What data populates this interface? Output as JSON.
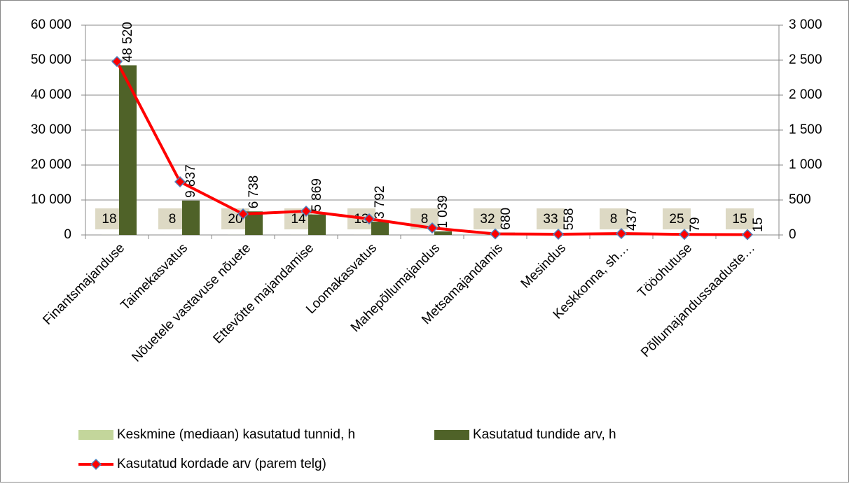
{
  "chart_data": {
    "type": "bar-line",
    "categories": [
      "Finantsmajanduse",
      "Taimekasvatus",
      "Nõuetele vastavuse nõuete",
      "Ettevõtte majandamise",
      "Loomakasvatus",
      "Mahepõllumajandus",
      "Metsamajandamis",
      "Mesindus",
      "Keskkonna, sh…",
      "Tööohutuse",
      "Põllumajandussaaduste…"
    ],
    "series": [
      {
        "name": "Keskmine (mediaan) kasutatud tunnid, h",
        "color": "#c3d69b",
        "type": "bar",
        "axis": "y",
        "values": [
          18,
          8,
          20,
          14,
          13,
          8,
          32,
          33,
          8,
          25,
          15
        ]
      },
      {
        "name": "Kasutatud tundide arv, h",
        "color": "#4f6228",
        "type": "bar",
        "axis": "y",
        "values": [
          48520,
          9837,
          6738,
          5869,
          3792,
          1039,
          680,
          558,
          437,
          79,
          15
        ],
        "value_labels": [
          "48 520",
          "9 837",
          "6 738",
          "5 869",
          "3 792",
          "1 039",
          "680",
          "558",
          "437",
          "79",
          "15"
        ]
      },
      {
        "name": "Kasutatud kordade arv (parem telg)",
        "color": "#ff0000",
        "type": "line",
        "axis": "y2",
        "values": [
          2480,
          760,
          300,
          340,
          230,
          100,
          15,
          10,
          20,
          8,
          5
        ]
      }
    ],
    "ylim": [
      0,
      60000
    ],
    "yticks": [
      0,
      {
        "value": 10000,
        "label": "10 000"
      },
      {
        "value": 20000,
        "label": "20 000"
      },
      {
        "value": 30000,
        "label": "30 000"
      },
      {
        "value": 40000,
        "label": "40 000"
      },
      {
        "value": 50000,
        "label": "50 000"
      },
      {
        "value": 60000,
        "label": "60 000"
      }
    ],
    "y2lim": [
      0,
      3000
    ],
    "y2ticks": [
      0,
      500,
      {
        "value": 1000,
        "label": "1 000"
      },
      {
        "value": 1500,
        "label": "1 500"
      },
      {
        "value": 2000,
        "label": "2 000"
      },
      {
        "value": 2500,
        "label": "2 500"
      },
      {
        "value": 3000,
        "label": "3 000"
      }
    ],
    "grid": true,
    "legend": "bottom"
  }
}
